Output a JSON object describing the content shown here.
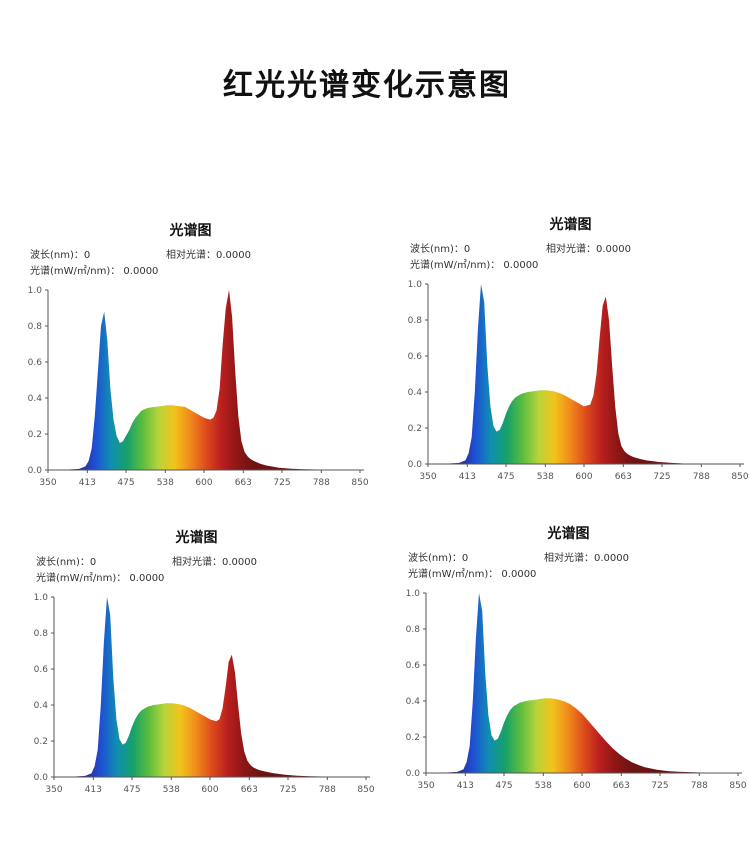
{
  "page": {
    "title": "红光光谱变化示意图"
  },
  "colors": {
    "axis": "#555555",
    "spectrum": [
      "#2b2a8c",
      "#1f4fd6",
      "#0f8fb0",
      "#17a06a",
      "#5cbd3f",
      "#b8d43a",
      "#f2c31b",
      "#f08a1c",
      "#dd4a1c",
      "#b81e1e",
      "#8c1616",
      "#6e1313"
    ]
  },
  "labels": {
    "wavelength": "波长(nm)：0",
    "relative": "相对光谱：0.0000",
    "spectral": "光谱(mW/㎡/nm)： 0.0000"
  },
  "chart_data": [
    {
      "type": "area",
      "title": "光谱图",
      "xlim": [
        350,
        850
      ],
      "ylim": [
        0,
        1
      ],
      "xticks": [
        350,
        413,
        475,
        538,
        600,
        663,
        725,
        788,
        850
      ],
      "yticks": [
        "0.0",
        "0.2",
        "0.4",
        "0.6",
        "0.8",
        "1.0"
      ],
      "x": [
        350,
        380,
        400,
        410,
        415,
        420,
        425,
        430,
        435,
        440,
        445,
        450,
        455,
        460,
        465,
        470,
        475,
        480,
        485,
        490,
        500,
        510,
        520,
        530,
        540,
        550,
        560,
        570,
        580,
        590,
        600,
        610,
        615,
        620,
        625,
        630,
        635,
        640,
        645,
        650,
        655,
        660,
        665,
        670,
        675,
        680,
        690,
        700,
        720,
        740,
        760,
        790,
        820,
        850
      ],
      "y": [
        0,
        0.002,
        0.006,
        0.02,
        0.05,
        0.12,
        0.3,
        0.55,
        0.8,
        0.88,
        0.72,
        0.45,
        0.28,
        0.19,
        0.15,
        0.16,
        0.19,
        0.22,
        0.26,
        0.29,
        0.33,
        0.345,
        0.35,
        0.355,
        0.36,
        0.36,
        0.355,
        0.35,
        0.33,
        0.31,
        0.29,
        0.28,
        0.29,
        0.33,
        0.45,
        0.7,
        0.9,
        1.0,
        0.85,
        0.55,
        0.3,
        0.16,
        0.1,
        0.075,
        0.06,
        0.05,
        0.035,
        0.025,
        0.013,
        0.007,
        0.004,
        0.002,
        0.001,
        0
      ]
    },
    {
      "type": "area",
      "title": "光谱图",
      "xlim": [
        350,
        850
      ],
      "ylim": [
        0,
        1
      ],
      "xticks": [
        350,
        413,
        475,
        538,
        600,
        663,
        725,
        788,
        850
      ],
      "yticks": [
        "0.0",
        "0.2",
        "0.4",
        "0.6",
        "0.8",
        "1.0"
      ],
      "x": [
        350,
        380,
        400,
        410,
        415,
        420,
        425,
        430,
        435,
        440,
        445,
        450,
        455,
        460,
        465,
        470,
        475,
        480,
        485,
        490,
        500,
        510,
        520,
        530,
        540,
        550,
        560,
        570,
        580,
        590,
        600,
        610,
        615,
        620,
        625,
        630,
        635,
        640,
        645,
        650,
        655,
        660,
        665,
        670,
        675,
        680,
        690,
        700,
        720,
        740,
        760,
        790,
        820,
        850
      ],
      "y": [
        0,
        0.002,
        0.006,
        0.02,
        0.06,
        0.15,
        0.4,
        0.75,
        1.0,
        0.9,
        0.55,
        0.32,
        0.21,
        0.18,
        0.19,
        0.23,
        0.28,
        0.32,
        0.35,
        0.37,
        0.39,
        0.4,
        0.405,
        0.41,
        0.41,
        0.405,
        0.395,
        0.38,
        0.36,
        0.34,
        0.32,
        0.33,
        0.38,
        0.5,
        0.7,
        0.88,
        0.93,
        0.8,
        0.55,
        0.32,
        0.17,
        0.1,
        0.07,
        0.055,
        0.045,
        0.038,
        0.028,
        0.02,
        0.011,
        0.006,
        0.003,
        0.002,
        0.001,
        0
      ]
    },
    {
      "type": "area",
      "title": "光谱图",
      "xlim": [
        350,
        850
      ],
      "ylim": [
        0,
        1
      ],
      "xticks": [
        350,
        413,
        475,
        538,
        600,
        663,
        725,
        788,
        850
      ],
      "yticks": [
        "0.0",
        "0.2",
        "0.4",
        "0.6",
        "0.8",
        "1.0"
      ],
      "x": [
        350,
        380,
        400,
        410,
        415,
        420,
        425,
        430,
        435,
        440,
        445,
        450,
        455,
        460,
        465,
        470,
        475,
        480,
        485,
        490,
        500,
        510,
        520,
        530,
        540,
        550,
        560,
        570,
        580,
        590,
        600,
        610,
        615,
        620,
        625,
        630,
        635,
        640,
        645,
        650,
        655,
        660,
        665,
        670,
        675,
        680,
        690,
        700,
        720,
        740,
        760,
        790,
        820,
        850
      ],
      "y": [
        0,
        0.002,
        0.006,
        0.02,
        0.06,
        0.15,
        0.4,
        0.75,
        1.0,
        0.9,
        0.55,
        0.32,
        0.21,
        0.18,
        0.19,
        0.23,
        0.28,
        0.32,
        0.35,
        0.37,
        0.39,
        0.4,
        0.405,
        0.41,
        0.41,
        0.405,
        0.395,
        0.38,
        0.36,
        0.34,
        0.32,
        0.31,
        0.32,
        0.38,
        0.5,
        0.64,
        0.68,
        0.58,
        0.4,
        0.24,
        0.14,
        0.09,
        0.065,
        0.052,
        0.044,
        0.038,
        0.029,
        0.022,
        0.013,
        0.007,
        0.004,
        0.002,
        0.001,
        0
      ]
    },
    {
      "type": "area",
      "title": "光谱图",
      "xlim": [
        350,
        850
      ],
      "ylim": [
        0,
        1
      ],
      "xticks": [
        350,
        413,
        475,
        538,
        600,
        663,
        725,
        788,
        850
      ],
      "yticks": [
        "0.0",
        "0.2",
        "0.4",
        "0.6",
        "0.8",
        "1.0"
      ],
      "x": [
        350,
        380,
        400,
        410,
        415,
        420,
        425,
        430,
        435,
        440,
        445,
        450,
        455,
        460,
        465,
        470,
        475,
        480,
        485,
        490,
        500,
        510,
        520,
        530,
        540,
        550,
        560,
        570,
        580,
        590,
        600,
        610,
        620,
        630,
        640,
        650,
        660,
        670,
        680,
        690,
        700,
        720,
        740,
        760,
        790,
        820,
        850
      ],
      "y": [
        0,
        0.002,
        0.006,
        0.02,
        0.06,
        0.15,
        0.4,
        0.75,
        1.0,
        0.9,
        0.55,
        0.32,
        0.21,
        0.18,
        0.19,
        0.23,
        0.28,
        0.32,
        0.35,
        0.37,
        0.39,
        0.4,
        0.405,
        0.41,
        0.415,
        0.415,
        0.41,
        0.4,
        0.385,
        0.36,
        0.33,
        0.29,
        0.25,
        0.21,
        0.17,
        0.135,
        0.105,
        0.08,
        0.06,
        0.045,
        0.033,
        0.018,
        0.01,
        0.006,
        0.003,
        0.001,
        0
      ]
    }
  ]
}
